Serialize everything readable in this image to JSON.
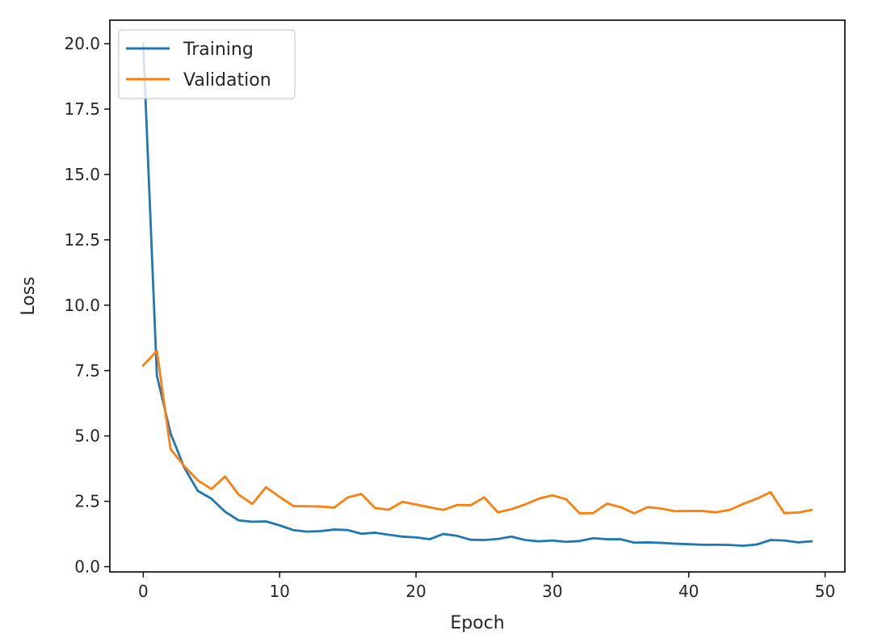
{
  "chart_data": {
    "type": "line",
    "title": "",
    "xlabel": "Epoch",
    "ylabel": "Loss",
    "xlim": [
      -2.45,
      51.45
    ],
    "ylim": [
      -0.2,
      20.9
    ],
    "xticks": [
      0,
      10,
      20,
      30,
      40,
      50
    ],
    "xtick_labels": [
      "0",
      "10",
      "20",
      "30",
      "40",
      "50"
    ],
    "yticks": [
      0,
      2.5,
      5,
      7.5,
      10,
      12.5,
      15,
      17.5,
      20
    ],
    "ytick_labels": [
      "0.0",
      "2.5",
      "5.0",
      "7.5",
      "10.0",
      "12.5",
      "15.0",
      "17.5",
      "20.0"
    ],
    "grid": false,
    "legend_position": "upper left",
    "x": [
      0,
      1,
      2,
      3,
      4,
      5,
      6,
      7,
      8,
      9,
      10,
      11,
      12,
      13,
      14,
      15,
      16,
      17,
      18,
      19,
      20,
      21,
      22,
      23,
      24,
      25,
      26,
      27,
      28,
      29,
      30,
      31,
      32,
      33,
      34,
      35,
      36,
      37,
      38,
      39,
      40,
      41,
      42,
      43,
      44,
      45,
      46,
      47,
      48,
      49
    ],
    "series": [
      {
        "name": "Training",
        "color": "#1f77b4",
        "values": [
          20.0,
          7.3,
          5.1,
          3.8,
          2.9,
          2.6,
          2.1,
          1.77,
          1.72,
          1.73,
          1.58,
          1.4,
          1.34,
          1.36,
          1.42,
          1.4,
          1.26,
          1.3,
          1.22,
          1.15,
          1.12,
          1.05,
          1.25,
          1.18,
          1.03,
          1.02,
          1.06,
          1.15,
          1.02,
          0.97,
          1.0,
          0.95,
          0.98,
          1.09,
          1.05,
          1.05,
          0.92,
          0.93,
          0.91,
          0.88,
          0.86,
          0.84,
          0.84,
          0.83,
          0.8,
          0.85,
          1.02,
          1.0,
          0.93,
          0.97
        ]
      },
      {
        "name": "Validation",
        "color": "#ff7f0e",
        "values": [
          7.7,
          8.25,
          4.5,
          3.85,
          3.3,
          2.97,
          3.45,
          2.75,
          2.4,
          3.04,
          2.67,
          2.32,
          2.31,
          2.3,
          2.26,
          2.65,
          2.78,
          2.24,
          2.18,
          2.48,
          2.38,
          2.27,
          2.17,
          2.36,
          2.35,
          2.65,
          2.08,
          2.2,
          2.38,
          2.6,
          2.73,
          2.58,
          2.04,
          2.05,
          2.41,
          2.28,
          2.04,
          2.28,
          2.22,
          2.12,
          2.13,
          2.13,
          2.08,
          2.17,
          2.4,
          2.6,
          2.85,
          2.05,
          2.07,
          2.17
        ]
      }
    ]
  }
}
